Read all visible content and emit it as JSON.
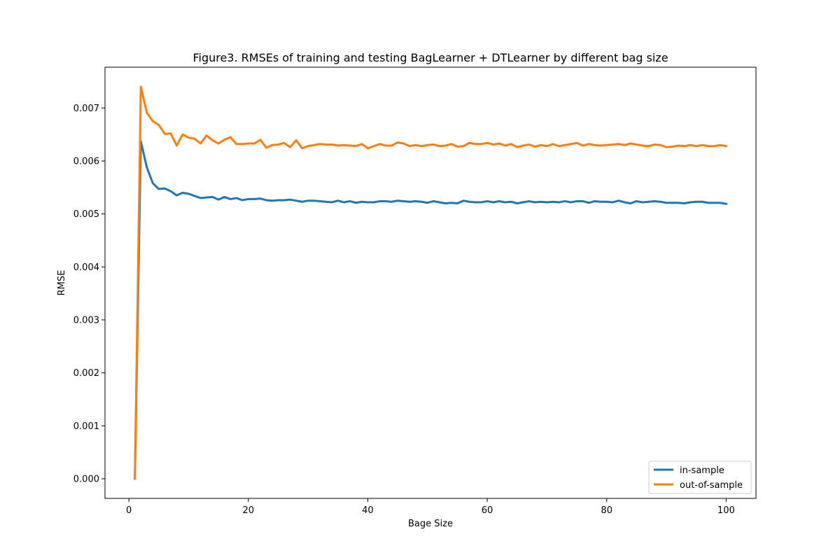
{
  "chart_data": {
    "type": "line",
    "title": "Figure3. RMSEs of training and testing BagLearner + DTLearner by different bag size",
    "xlabel": "Bage Size",
    "ylabel": "RMSE",
    "xlim": [
      -4,
      105
    ],
    "ylim": [
      -0.00037,
      0.00777
    ],
    "xticks": [
      0,
      20,
      40,
      60,
      80,
      100
    ],
    "yticks": [
      0.0,
      0.001,
      0.002,
      0.003,
      0.004,
      0.005,
      0.006,
      0.007
    ],
    "ytick_labels": [
      "0.000",
      "0.001",
      "0.002",
      "0.003",
      "0.004",
      "0.005",
      "0.006",
      "0.007"
    ],
    "grid": false,
    "legend_position": "lower-right",
    "x": [
      1,
      2,
      3,
      4,
      5,
      6,
      7,
      8,
      9,
      10,
      11,
      12,
      13,
      14,
      15,
      16,
      17,
      18,
      19,
      20,
      21,
      22,
      23,
      24,
      25,
      26,
      27,
      28,
      29,
      30,
      31,
      32,
      33,
      34,
      35,
      36,
      37,
      38,
      39,
      40,
      41,
      42,
      43,
      44,
      45,
      46,
      47,
      48,
      49,
      50,
      51,
      52,
      53,
      54,
      55,
      56,
      57,
      58,
      59,
      60,
      61,
      62,
      63,
      64,
      65,
      66,
      67,
      68,
      69,
      70,
      71,
      72,
      73,
      74,
      75,
      76,
      77,
      78,
      79,
      80,
      81,
      82,
      83,
      84,
      85,
      86,
      87,
      88,
      89,
      90,
      91,
      92,
      93,
      94,
      95,
      96,
      97,
      98,
      99,
      100
    ],
    "series": [
      {
        "name": "in-sample",
        "color": "#1f77b4",
        "values": [
          0.0,
          0.00637,
          0.00588,
          0.00558,
          0.00547,
          0.00548,
          0.00543,
          0.00535,
          0.0054,
          0.00538,
          0.00534,
          0.0053,
          0.00531,
          0.00532,
          0.00527,
          0.00532,
          0.00528,
          0.0053,
          0.00526,
          0.00528,
          0.00528,
          0.00529,
          0.00526,
          0.00525,
          0.00526,
          0.00526,
          0.00527,
          0.00525,
          0.00523,
          0.00525,
          0.00525,
          0.00524,
          0.00523,
          0.00522,
          0.00525,
          0.00522,
          0.00524,
          0.00521,
          0.00523,
          0.00522,
          0.00522,
          0.00524,
          0.00524,
          0.00523,
          0.00525,
          0.00524,
          0.00523,
          0.00524,
          0.00523,
          0.00521,
          0.00524,
          0.00522,
          0.0052,
          0.00521,
          0.0052,
          0.00525,
          0.00523,
          0.00522,
          0.00522,
          0.00524,
          0.00522,
          0.00524,
          0.00522,
          0.00523,
          0.0052,
          0.00522,
          0.00524,
          0.00522,
          0.00523,
          0.00522,
          0.00523,
          0.00522,
          0.00524,
          0.00522,
          0.00524,
          0.00524,
          0.00521,
          0.00524,
          0.00523,
          0.00523,
          0.00522,
          0.00525,
          0.00522,
          0.0052,
          0.00524,
          0.00522,
          0.00523,
          0.00524,
          0.00523,
          0.00521,
          0.00521,
          0.00521,
          0.0052,
          0.00522,
          0.00523,
          0.00523,
          0.00521,
          0.00521,
          0.00521,
          0.00519
        ]
      },
      {
        "name": "out-of-sample",
        "color": "#ff7f0e",
        "values": [
          0.0,
          0.0074,
          0.00691,
          0.00675,
          0.00668,
          0.00651,
          0.00652,
          0.00629,
          0.0065,
          0.00644,
          0.00642,
          0.00633,
          0.00648,
          0.00639,
          0.00633,
          0.0064,
          0.00645,
          0.00632,
          0.00632,
          0.00633,
          0.00633,
          0.0064,
          0.00625,
          0.0063,
          0.00631,
          0.00634,
          0.00626,
          0.00639,
          0.00624,
          0.00628,
          0.0063,
          0.00632,
          0.00631,
          0.00631,
          0.00629,
          0.0063,
          0.00629,
          0.00628,
          0.00632,
          0.00624,
          0.00628,
          0.00632,
          0.00629,
          0.00629,
          0.00635,
          0.00633,
          0.00628,
          0.0063,
          0.00628,
          0.0063,
          0.00631,
          0.00628,
          0.00629,
          0.00632,
          0.00627,
          0.00628,
          0.00634,
          0.00632,
          0.00632,
          0.00634,
          0.00631,
          0.00633,
          0.00629,
          0.00632,
          0.00626,
          0.00629,
          0.00631,
          0.00627,
          0.0063,
          0.00628,
          0.00632,
          0.00628,
          0.0063,
          0.00632,
          0.00634,
          0.00629,
          0.00632,
          0.0063,
          0.00629,
          0.0063,
          0.00631,
          0.00632,
          0.0063,
          0.00633,
          0.00631,
          0.00629,
          0.00628,
          0.00631,
          0.0063,
          0.00626,
          0.00627,
          0.00629,
          0.00628,
          0.0063,
          0.00628,
          0.0063,
          0.00628,
          0.00628,
          0.0063,
          0.00628
        ]
      }
    ]
  }
}
